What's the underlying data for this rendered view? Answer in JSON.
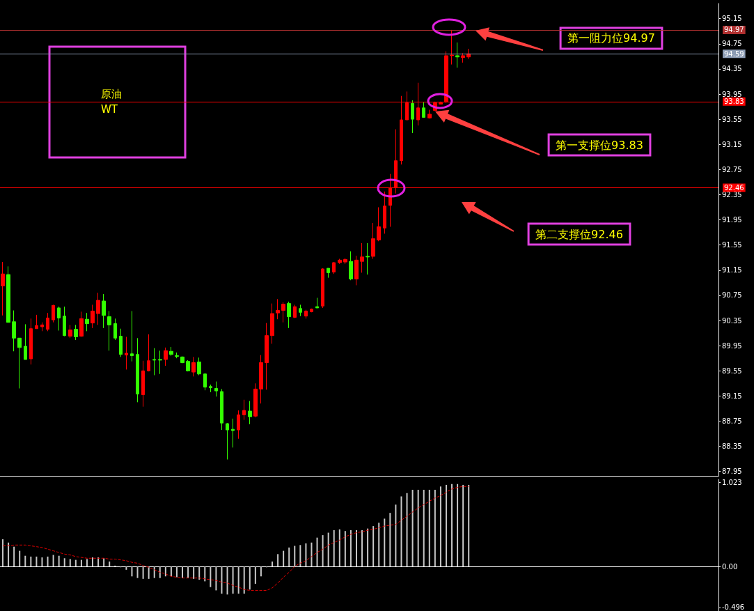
{
  "chart_data": [
    {
      "type": "candlestick",
      "title": "原油\nWT",
      "categories": [
        null,
        null,
        null,
        null,
        null,
        null,
        null,
        null,
        null,
        null,
        null,
        null,
        null,
        null,
        null,
        null,
        null,
        null,
        null,
        null,
        null,
        null,
        null,
        null,
        null,
        null,
        null,
        null,
        null,
        null,
        null,
        null,
        null,
        null,
        null,
        null,
        null,
        null,
        null,
        null,
        null,
        null,
        null,
        null,
        null,
        null,
        null,
        null,
        null,
        null,
        null,
        null,
        null,
        null,
        null,
        null,
        null,
        null,
        null,
        null,
        null,
        null,
        null,
        null,
        null,
        null,
        null,
        null,
        null,
        null,
        null,
        null,
        null,
        null,
        null,
        null,
        null,
        null,
        null,
        null,
        null,
        null,
        null,
        null,
        null,
        null,
        null,
        null,
        null,
        null,
        null,
        null,
        null,
        null,
        null,
        null,
        null,
        null,
        null,
        null,
        null,
        null,
        null,
        null,
        null,
        null,
        null,
        null,
        null,
        null,
        null,
        null,
        null,
        null,
        null,
        null,
        null,
        null,
        null,
        null,
        null,
        null,
        null,
        null,
        null,
        null,
        null,
        null
      ],
      "ohlc": [
        [
          90.9,
          91.28,
          90.43,
          91.09
        ],
        [
          91.08,
          91.21,
          90.32,
          90.32
        ],
        [
          90.33,
          90.51,
          89.86,
          90.07
        ],
        [
          90.07,
          90.07,
          89.27,
          89.92
        ],
        [
          89.94,
          90.29,
          89.73,
          89.73
        ],
        [
          89.74,
          90.38,
          89.65,
          90.22
        ],
        [
          90.22,
          90.44,
          90.22,
          90.27
        ],
        [
          90.25,
          90.32,
          90.18,
          90.28
        ],
        [
          90.21,
          90.47,
          90.18,
          90.39
        ],
        [
          90.36,
          90.6,
          90.32,
          90.59
        ],
        [
          90.55,
          90.57,
          90.19,
          90.39
        ],
        [
          90.42,
          90.57,
          90.1,
          90.11
        ],
        [
          90.1,
          90.28,
          90.07,
          90.2
        ],
        [
          90.21,
          90.28,
          90.04,
          90.09
        ],
        [
          90.1,
          90.49,
          90.09,
          90.38
        ],
        [
          90.37,
          90.47,
          90.18,
          90.3
        ],
        [
          90.31,
          90.6,
          90.23,
          90.5
        ],
        [
          90.46,
          90.79,
          90.28,
          90.67
        ],
        [
          90.66,
          90.77,
          90.23,
          90.43
        ],
        [
          90.41,
          90.5,
          89.87,
          90.28
        ],
        [
          90.3,
          90.38,
          90.04,
          90.07
        ],
        [
          90.1,
          90.22,
          89.77,
          89.81
        ],
        [
          89.8,
          90.09,
          89.57,
          89.83
        ],
        [
          89.82,
          90.5,
          89.7,
          89.79
        ],
        [
          89.81,
          90.07,
          89.05,
          89.18
        ],
        [
          89.17,
          89.71,
          88.98,
          89.55
        ],
        [
          89.55,
          90.13,
          89.54,
          89.71
        ],
        [
          89.73,
          89.91,
          89.48,
          89.72
        ],
        [
          89.73,
          89.87,
          89.5,
          89.72
        ],
        [
          89.73,
          89.92,
          89.63,
          89.87
        ],
        [
          89.86,
          89.93,
          89.79,
          89.81
        ],
        [
          89.79,
          89.84,
          89.75,
          89.78
        ],
        [
          89.77,
          89.78,
          89.67,
          89.68
        ],
        [
          89.7,
          89.72,
          89.54,
          89.55
        ],
        [
          89.53,
          89.77,
          89.46,
          89.68
        ],
        [
          89.69,
          89.76,
          89.48,
          89.5
        ],
        [
          89.5,
          89.51,
          89.24,
          89.29
        ],
        [
          89.3,
          89.33,
          89.21,
          89.28
        ],
        [
          89.27,
          89.38,
          89.14,
          89.23
        ],
        [
          89.22,
          89.26,
          88.61,
          88.72
        ],
        [
          88.71,
          88.72,
          88.14,
          88.61
        ],
        [
          88.62,
          88.79,
          88.33,
          88.6
        ],
        [
          88.61,
          88.92,
          88.47,
          88.85
        ],
        [
          88.85,
          89.09,
          88.77,
          88.92
        ],
        [
          88.91,
          89.07,
          88.7,
          88.82
        ],
        [
          88.83,
          89.35,
          88.81,
          89.26
        ],
        [
          89.26,
          89.8,
          89.03,
          89.68
        ],
        [
          89.68,
          90.31,
          89.25,
          90.11
        ],
        [
          90.11,
          90.62,
          89.98,
          90.46
        ],
        [
          90.47,
          90.69,
          90.37,
          90.51
        ],
        [
          90.51,
          90.64,
          90.32,
          90.61
        ],
        [
          90.62,
          90.65,
          90.23,
          90.41
        ],
        [
          90.4,
          90.6,
          90.39,
          90.57
        ],
        [
          90.54,
          90.6,
          90.42,
          90.48
        ],
        [
          90.42,
          90.52,
          90.38,
          90.5
        ],
        [
          90.49,
          90.54,
          90.48,
          90.53
        ],
        [
          90.57,
          90.71,
          90.55,
          90.55
        ],
        [
          90.58,
          91.18,
          90.55,
          91.17
        ],
        [
          91.18,
          91.18,
          91.03,
          91.11
        ],
        [
          91.12,
          91.28,
          91.09,
          91.27
        ],
        [
          91.27,
          91.33,
          91.25,
          91.31
        ],
        [
          91.28,
          91.34,
          91.25,
          91.32
        ],
        [
          91.29,
          91.45,
          90.99,
          91.01
        ],
        [
          91.01,
          91.38,
          90.91,
          91.31
        ],
        [
          91.29,
          91.58,
          91.11,
          91.36
        ],
        [
          91.37,
          91.58,
          91.08,
          91.36
        ],
        [
          91.37,
          91.9,
          91.33,
          91.65
        ],
        [
          91.63,
          92.15,
          91.61,
          91.84
        ],
        [
          91.82,
          92.4,
          91.73,
          92.17
        ],
        [
          92.18,
          92.68,
          91.84,
          92.46
        ],
        [
          92.46,
          93.39,
          92.37,
          92.89
        ],
        [
          92.89,
          93.92,
          92.83,
          93.54
        ],
        [
          93.54,
          93.99,
          93.54,
          93.81
        ],
        [
          93.8,
          93.85,
          93.33,
          93.55
        ],
        [
          93.54,
          94.13,
          93.45,
          93.73
        ],
        [
          93.73,
          93.82,
          93.58,
          93.58
        ],
        [
          93.57,
          93.7,
          93.56,
          93.63
        ],
        [
          93.69,
          93.83,
          93.68,
          93.81
        ],
        [
          93.79,
          93.83,
          93.79,
          93.81
        ],
        [
          93.83,
          94.63,
          93.81,
          94.56
        ],
        [
          94.56,
          94.97,
          94.42,
          94.57
        ],
        [
          94.56,
          94.77,
          94.37,
          94.54
        ],
        [
          94.53,
          94.6,
          94.45,
          94.56
        ],
        [
          94.54,
          94.67,
          94.51,
          94.59
        ],
        null,
        null,
        null,
        null,
        null,
        null,
        null,
        null,
        null,
        null,
        null,
        null,
        null,
        null,
        null,
        null,
        null,
        null,
        null,
        null,
        null,
        null,
        null,
        null,
        null,
        null,
        null,
        null,
        null,
        null,
        null,
        null,
        null,
        null,
        null,
        null,
        null,
        null,
        null,
        null,
        null,
        null,
        null,
        null
      ],
      "colors": [
        "#ff0000",
        "#33ff00",
        "#33ff00",
        "#33ff00",
        "#33ff00",
        "#ff0000",
        "#ff0000",
        "#ff0000",
        "#ff0000",
        "#ff0000",
        "#33ff00",
        "#33ff00",
        "#ff0000",
        "#33ff00",
        "#ff0000",
        "#33ff00",
        "#ff0000",
        "#ff0000",
        "#33ff00",
        "#33ff00",
        "#33ff00",
        "#33ff00",
        "#ff0000",
        "#33ff00",
        "#33ff00",
        "#ff0000",
        "#ff0000",
        "#33ff00",
        "#33ff00",
        "#ff0000",
        "#33ff00",
        "#33ff00",
        "#33ff00",
        "#33ff00",
        "#ff0000",
        "#33ff00",
        "#33ff00",
        "#33ff00",
        "#33ff00",
        "#33ff00",
        "#33ff00",
        "#33ff00",
        "#ff0000",
        "#ff0000",
        "#33ff00",
        "#ff0000",
        "#ff0000",
        "#ff0000",
        "#ff0000",
        "#ff0000",
        "#ff0000",
        "#33ff00",
        "#ff0000",
        "#33ff00",
        "#ff0000",
        "#ff0000",
        "#33ff00",
        "#ff0000",
        "#33ff00",
        "#ff0000",
        "#ff0000",
        "#ff0000",
        "#33ff00",
        "#ff0000",
        "#ff0000",
        "#33ff00",
        "#ff0000",
        "#ff0000",
        "#ff0000",
        "#ff0000",
        "#ff0000",
        "#ff0000",
        "#ff0000",
        "#33ff00",
        "#ff0000",
        "#33ff00",
        "#ff0000",
        "#ff0000",
        "#ff0000",
        "#ff0000",
        "#ff0000",
        "#33ff00",
        "#ff0000",
        "#ff0000",
        null,
        null,
        null,
        null,
        null,
        null,
        null,
        null,
        null,
        null,
        null,
        null,
        null,
        null,
        null,
        null,
        null,
        null,
        null,
        null,
        null,
        null,
        null,
        null,
        null,
        null,
        null,
        null,
        null,
        null,
        null,
        null,
        null,
        null,
        null,
        null,
        null,
        null,
        null,
        null,
        null,
        null,
        null,
        null
      ],
      "ylim": [
        87.88,
        95.39
      ],
      "yticks": [
        87.95,
        88.35,
        88.75,
        89.15,
        89.55,
        89.95,
        90.35,
        90.75,
        91.15,
        91.55,
        91.95,
        92.35,
        92.75,
        93.15,
        93.55,
        93.95,
        94.35,
        94.75,
        95.15
      ],
      "ref_lines": [
        {
          "axis": "y",
          "value": 94.97,
          "label": "94.97",
          "color": "#b03030"
        },
        {
          "axis": "y",
          "value": 94.59,
          "label": "94.59",
          "color": "#8c9cb4"
        },
        {
          "axis": "y",
          "value": 93.83,
          "label": "93.83",
          "color": "#ff0000"
        },
        {
          "axis": "y",
          "value": 92.46,
          "label": "92.46",
          "color": "#ff0000"
        }
      ],
      "annotations": [
        {
          "text": "第一阻力位94.97",
          "y": 94.97
        },
        "第一支撑位93.83",
        "第二支撑位92.46"
      ],
      "tick_labels": "y"
    },
    {
      "type": "bar",
      "categories": [
        null,
        null,
        null,
        null,
        null,
        null,
        null,
        null,
        null,
        null,
        null,
        null,
        null,
        null,
        null,
        null,
        null,
        null,
        null,
        null,
        null,
        null,
        null,
        null,
        null,
        null,
        null,
        null,
        null,
        null,
        null,
        null,
        null,
        null,
        null,
        null,
        null,
        null,
        null,
        null,
        null,
        null,
        null,
        null,
        null,
        null,
        null,
        null,
        null,
        null,
        null,
        null,
        null,
        null,
        null,
        null,
        null,
        null,
        null,
        null,
        null,
        null,
        null,
        null,
        null,
        null,
        null,
        null,
        null,
        null,
        null,
        null,
        null,
        null,
        null,
        null,
        null,
        null,
        null,
        null,
        null,
        null,
        null,
        null,
        null,
        null,
        null,
        null,
        null,
        null,
        null,
        null,
        null,
        null,
        null,
        null,
        null,
        null,
        null,
        null,
        null,
        null,
        null,
        null,
        null,
        null,
        null,
        null,
        null,
        null,
        null,
        null,
        null,
        null,
        null,
        null,
        null,
        null,
        null,
        null,
        null,
        null,
        null,
        null,
        null,
        null,
        null,
        null
      ],
      "series": [
        {
          "type": "bar",
          "color": "#c8c8c8",
          "values": [
            0.33,
            0.29,
            0.24,
            0.19,
            0.13,
            0.12,
            0.12,
            0.11,
            0.12,
            0.14,
            0.13,
            0.1,
            0.09,
            0.08,
            0.08,
            0.09,
            0.11,
            0.11,
            0.1,
            0.06,
            0.01,
            -0.01,
            -0.04,
            -0.12,
            -0.14,
            -0.15,
            -0.15,
            -0.14,
            -0.14,
            -0.12,
            -0.12,
            -0.13,
            -0.14,
            -0.14,
            -0.15,
            -0.16,
            -0.18,
            -0.25,
            -0.29,
            -0.33,
            -0.34,
            -0.33,
            -0.33,
            -0.33,
            -0.28,
            -0.21,
            -0.12,
            -0.01,
            0.06,
            0.15,
            0.19,
            0.23,
            0.25,
            0.26,
            0.28,
            0.29,
            0.35,
            0.38,
            0.41,
            0.44,
            0.45,
            0.43,
            0.44,
            0.44,
            0.44,
            0.46,
            0.49,
            0.53,
            0.58,
            0.65,
            0.75,
            0.85,
            0.89,
            0.93,
            0.93,
            0.93,
            0.93,
            0.93,
            0.97,
            0.99,
            1.0,
            1.0,
            0.99,
            0.99,
            null,
            null,
            null,
            null,
            null,
            null,
            null,
            null,
            null,
            null,
            null,
            null,
            null,
            null,
            null,
            null,
            null,
            null,
            null,
            null,
            null,
            null,
            null,
            null,
            null,
            null,
            null,
            null,
            null,
            null,
            null,
            null,
            null,
            null,
            null,
            null,
            null,
            null,
            null,
            null,
            null,
            null,
            null,
            null
          ]
        },
        {
          "type": "line",
          "color": "#e00000",
          "line_style": "dashed",
          "values": [
            0.25,
            0.25,
            0.26,
            0.26,
            0.26,
            0.25,
            0.24,
            0.23,
            0.21,
            0.19,
            0.17,
            0.15,
            0.14,
            0.12,
            0.11,
            0.1,
            0.1,
            0.1,
            0.1,
            0.09,
            0.09,
            0.08,
            0.07,
            0.05,
            0.04,
            0.01,
            -0.01,
            -0.04,
            -0.07,
            -0.09,
            -0.12,
            -0.13,
            -0.14,
            -0.14,
            -0.14,
            -0.14,
            -0.15,
            -0.16,
            -0.17,
            -0.19,
            -0.2,
            -0.23,
            -0.25,
            -0.28,
            -0.29,
            -0.29,
            -0.29,
            -0.29,
            -0.26,
            -0.2,
            -0.13,
            -0.07,
            0.0,
            0.04,
            0.07,
            0.12,
            0.17,
            0.21,
            0.26,
            0.29,
            0.32,
            0.36,
            0.39,
            0.41,
            0.42,
            0.44,
            0.45,
            0.47,
            0.49,
            0.5,
            0.51,
            0.56,
            0.61,
            0.66,
            0.71,
            0.75,
            0.79,
            0.83,
            0.86,
            0.9,
            0.94,
            0.96,
            0.97,
            0.97,
            null,
            null,
            null,
            null,
            null,
            null,
            null,
            null,
            null,
            null,
            null,
            null,
            null,
            null,
            null,
            null,
            null,
            null,
            null,
            null,
            null,
            null,
            null,
            null,
            null,
            null,
            null,
            null,
            null,
            null,
            null,
            null,
            null,
            null,
            null,
            null,
            null,
            null,
            null,
            null,
            null,
            null,
            null,
            null
          ]
        }
      ],
      "ylim": [
        -0.54,
        1.057
      ],
      "yticks": [
        -0.496,
        {
          "value": 0,
          "label": "0.00"
        },
        1.023
      ],
      "tick_labels": "y"
    }
  ]
}
